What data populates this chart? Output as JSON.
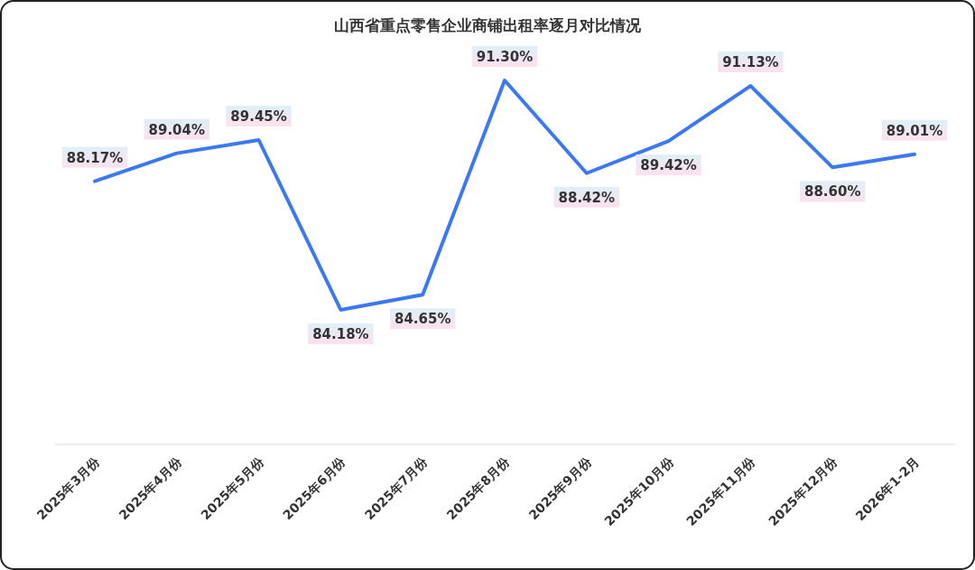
{
  "chart_data": {
    "type": "line",
    "title": "山西省重点零售企业商铺出租率逐月对比情况",
    "categories": [
      "2025年3月份",
      "2025年4月份",
      "2025年5月份",
      "2025年6月份",
      "2025年7月份",
      "2025年8月份",
      "2025年9月份",
      "2025年10月份",
      "2025年11月份",
      "2025年12月份",
      "2026年1-2月"
    ],
    "series": [
      {
        "color": "#3b78f2",
        "values": [
          88.17,
          89.04,
          89.45,
          84.18,
          84.65,
          91.3,
          88.42,
          89.42,
          91.13,
          88.6,
          89.01
        ],
        "value_labels": [
          "88.17%",
          "89.04%",
          "89.45%",
          "84.18%",
          "84.65%",
          "91.30%",
          "88.42%",
          "89.42%",
          "91.13%",
          "88.60%",
          "89.01%"
        ]
      }
    ]
  }
}
